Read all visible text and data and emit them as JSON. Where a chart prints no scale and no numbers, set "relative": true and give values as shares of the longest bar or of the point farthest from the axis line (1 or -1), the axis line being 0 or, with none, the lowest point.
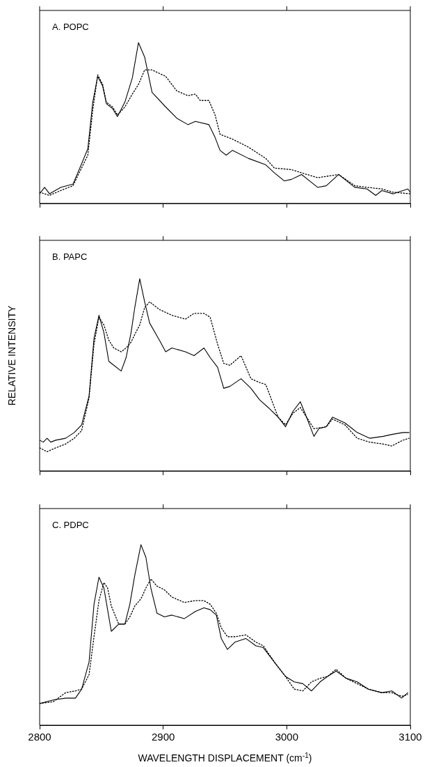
{
  "chart_data": [
    {
      "type": "line",
      "title": "A. POPC",
      "relative": true,
      "xlim": [
        2800,
        3100
      ],
      "xticks": [
        2800,
        2900,
        3000,
        3100
      ],
      "tick_labels": false,
      "series": [
        {
          "color": "#000000",
          "line_style": "solid",
          "x": [
            2800,
            2804,
            2808,
            2817,
            2827,
            2832,
            2839,
            2843,
            2847,
            2851,
            2854,
            2859,
            2863,
            2869,
            2875,
            2880,
            2885,
            2891,
            2902,
            2911,
            2920,
            2926,
            2937,
            2942,
            2946,
            2951,
            2956,
            2969,
            2983,
            2990,
            2998,
            3004,
            3012,
            3025,
            3032,
            3042,
            3055,
            3065,
            3072,
            3077,
            3086,
            3098,
            3100
          ],
          "values": [
            0.06,
            0.1,
            0.06,
            0.1,
            0.12,
            0.21,
            0.34,
            0.63,
            0.79,
            0.73,
            0.62,
            0.59,
            0.54,
            0.63,
            0.78,
            1.0,
            0.91,
            0.69,
            0.6,
            0.53,
            0.49,
            0.51,
            0.49,
            0.41,
            0.33,
            0.3,
            0.33,
            0.28,
            0.24,
            0.19,
            0.14,
            0.15,
            0.18,
            0.1,
            0.11,
            0.18,
            0.1,
            0.09,
            0.05,
            0.08,
            0.06,
            0.09,
            0.07
          ]
        },
        {
          "color": "#000000",
          "line_style": "dotted",
          "x": [
            2800,
            2808,
            2817,
            2827,
            2832,
            2839,
            2843,
            2847,
            2851,
            2854,
            2859,
            2863,
            2869,
            2875,
            2880,
            2885,
            2891,
            2902,
            2911,
            2920,
            2926,
            2930,
            2937,
            2942,
            2946,
            2956,
            2969,
            2983,
            2990,
            3004,
            3012,
            3025,
            3042,
            3055,
            3065,
            3077,
            3086,
            3100
          ],
          "values": [
            0.07,
            0.05,
            0.08,
            0.11,
            0.19,
            0.3,
            0.58,
            0.8,
            0.74,
            0.63,
            0.6,
            0.55,
            0.6,
            0.68,
            0.74,
            0.83,
            0.83,
            0.79,
            0.7,
            0.67,
            0.68,
            0.64,
            0.64,
            0.55,
            0.43,
            0.4,
            0.35,
            0.28,
            0.22,
            0.21,
            0.19,
            0.16,
            0.18,
            0.11,
            0.1,
            0.09,
            0.07,
            0.06
          ]
        }
      ]
    },
    {
      "type": "line",
      "title": "B. PAPC",
      "ylabel": "RELATIVE INTENSITY",
      "relative": true,
      "xlim": [
        2800,
        3100
      ],
      "xticks": [
        2800,
        2900,
        3000,
        3100
      ],
      "tick_labels": false,
      "series": [
        {
          "color": "#000000",
          "line_style": "solid",
          "x": [
            2800,
            2803,
            2806,
            2809,
            2813,
            2821,
            2828,
            2834,
            2840,
            2844,
            2848,
            2852,
            2856,
            2860,
            2866,
            2870,
            2874,
            2877,
            2881,
            2885,
            2889,
            2897,
            2902,
            2907,
            2918,
            2925,
            2933,
            2938,
            2944,
            2949,
            2954,
            2963,
            2971,
            2978,
            2985,
            2993,
            2999,
            3005,
            3011,
            3016,
            3022,
            3026,
            3032,
            3037,
            3047,
            3057,
            3067,
            3078,
            3085,
            3094,
            3099
          ],
          "values": [
            0.16,
            0.15,
            0.17,
            0.15,
            0.16,
            0.17,
            0.2,
            0.24,
            0.39,
            0.69,
            0.81,
            0.72,
            0.57,
            0.55,
            0.52,
            0.59,
            0.72,
            0.85,
            1.0,
            0.88,
            0.77,
            0.68,
            0.62,
            0.64,
            0.62,
            0.6,
            0.64,
            0.59,
            0.54,
            0.43,
            0.44,
            0.48,
            0.43,
            0.37,
            0.33,
            0.28,
            0.23,
            0.31,
            0.36,
            0.28,
            0.18,
            0.22,
            0.23,
            0.28,
            0.25,
            0.2,
            0.17,
            0.18,
            0.19,
            0.2,
            0.2
          ]
        },
        {
          "color": "#000000",
          "line_style": "dotted",
          "x": [
            2800,
            2806,
            2813,
            2821,
            2828,
            2834,
            2840,
            2844,
            2848,
            2852,
            2856,
            2860,
            2866,
            2870,
            2874,
            2877,
            2881,
            2885,
            2889,
            2897,
            2907,
            2918,
            2925,
            2933,
            2938,
            2944,
            2949,
            2954,
            2963,
            2971,
            2978,
            2983,
            2993,
            2999,
            3005,
            3011,
            3016,
            3022,
            3032,
            3037,
            3047,
            3057,
            3067,
            3078,
            3085,
            3094,
            3099
          ],
          "values": [
            0.12,
            0.1,
            0.12,
            0.14,
            0.17,
            0.21,
            0.38,
            0.66,
            0.8,
            0.76,
            0.68,
            0.64,
            0.62,
            0.64,
            0.67,
            0.71,
            0.76,
            0.85,
            0.88,
            0.84,
            0.81,
            0.79,
            0.82,
            0.82,
            0.8,
            0.66,
            0.56,
            0.55,
            0.6,
            0.48,
            0.46,
            0.45,
            0.28,
            0.24,
            0.3,
            0.33,
            0.28,
            0.22,
            0.23,
            0.27,
            0.24,
            0.17,
            0.15,
            0.14,
            0.13,
            0.16,
            0.17
          ]
        }
      ]
    },
    {
      "type": "line",
      "title": "C. PDPC",
      "xlabel": "WAVELENGTH DISPLACEMENT (cm$^{-1}$)",
      "relative": true,
      "xlim": [
        2800,
        3100
      ],
      "xticks": [
        2800,
        2900,
        3000,
        3100
      ],
      "tick_labels": "x",
      "series": [
        {
          "color": "#000000",
          "line_style": "solid",
          "x": [
            2800,
            2811,
            2821,
            2829,
            2834,
            2840,
            2844,
            2848,
            2852,
            2855,
            2858,
            2864,
            2869,
            2873,
            2877,
            2882,
            2886,
            2890,
            2895,
            2901,
            2907,
            2917,
            2926,
            2933,
            2938,
            2943,
            2947,
            2952,
            2958,
            2967,
            2975,
            2981,
            2991,
            2999,
            3006,
            3013,
            3020,
            3027,
            3033,
            3040,
            3048,
            3057,
            3066,
            3077,
            3085,
            3093,
            3098
          ],
          "values": [
            0.12,
            0.14,
            0.15,
            0.15,
            0.2,
            0.35,
            0.67,
            0.82,
            0.76,
            0.64,
            0.52,
            0.56,
            0.56,
            0.67,
            0.83,
            1.0,
            0.93,
            0.76,
            0.62,
            0.6,
            0.61,
            0.59,
            0.63,
            0.65,
            0.64,
            0.61,
            0.48,
            0.42,
            0.46,
            0.48,
            0.44,
            0.43,
            0.34,
            0.27,
            0.24,
            0.23,
            0.19,
            0.24,
            0.27,
            0.3,
            0.26,
            0.24,
            0.2,
            0.18,
            0.19,
            0.15,
            0.18
          ]
        },
        {
          "color": "#000000",
          "line_style": "dotted",
          "x": [
            2800,
            2811,
            2821,
            2829,
            2834,
            2840,
            2844,
            2848,
            2852,
            2855,
            2858,
            2864,
            2869,
            2873,
            2877,
            2882,
            2886,
            2890,
            2895,
            2901,
            2907,
            2917,
            2926,
            2933,
            2938,
            2943,
            2947,
            2952,
            2958,
            2967,
            2975,
            2981,
            2991,
            2999,
            3006,
            3013,
            3020,
            3027,
            3033,
            3040,
            3048,
            3057,
            3066,
            3077,
            3085,
            3093,
            3098
          ],
          "values": [
            0.12,
            0.13,
            0.18,
            0.19,
            0.2,
            0.28,
            0.49,
            0.69,
            0.79,
            0.76,
            0.66,
            0.56,
            0.56,
            0.6,
            0.66,
            0.7,
            0.76,
            0.81,
            0.77,
            0.75,
            0.71,
            0.68,
            0.69,
            0.69,
            0.67,
            0.62,
            0.54,
            0.49,
            0.49,
            0.5,
            0.46,
            0.44,
            0.34,
            0.27,
            0.2,
            0.19,
            0.24,
            0.26,
            0.27,
            0.31,
            0.26,
            0.23,
            0.2,
            0.18,
            0.18,
            0.16,
            0.17
          ]
        }
      ]
    }
  ]
}
